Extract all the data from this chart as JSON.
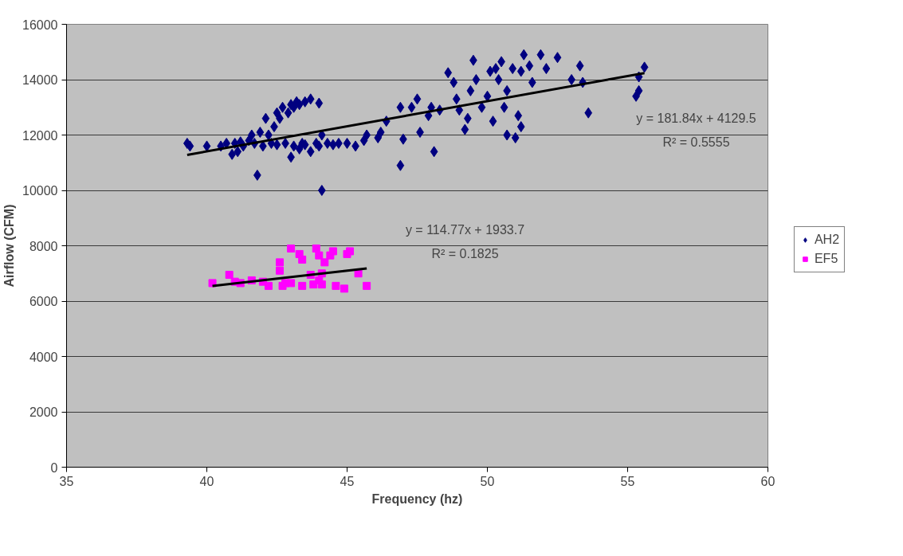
{
  "chart_data": {
    "type": "scatter",
    "xlabel": "Frequency (hz)",
    "ylabel": "Airflow (CFM)",
    "xlim": [
      35,
      60
    ],
    "xticks": [
      35,
      40,
      45,
      50,
      55,
      60
    ],
    "ylim": [
      0,
      16000
    ],
    "yticks": [
      0,
      2000,
      4000,
      6000,
      8000,
      10000,
      12000,
      14000,
      16000
    ],
    "grid": "y",
    "legend": "right",
    "series": [
      {
        "name": "AH2",
        "color": "#000080",
        "marker": "diamond",
        "x": [
          39.3,
          39.4,
          40.0,
          40.5,
          40.7,
          40.9,
          41.0,
          41.1,
          41.2,
          41.3,
          41.5,
          41.6,
          41.7,
          41.8,
          41.9,
          42.0,
          42.1,
          42.2,
          42.3,
          42.4,
          42.5,
          42.6,
          42.7,
          42.9,
          43.0,
          43.1,
          43.2,
          43.3,
          43.5,
          43.7,
          44.0,
          42.5,
          42.8,
          43.0,
          43.1,
          43.3,
          43.4,
          43.5,
          43.7,
          43.9,
          44.0,
          44.1,
          44.1,
          44.3,
          44.5,
          44.7,
          45.0,
          45.3,
          45.6,
          45.7,
          46.1,
          46.2,
          46.4,
          46.9,
          46.9,
          47.0,
          47.3,
          47.5,
          47.6,
          47.9,
          48.0,
          48.1,
          48.3,
          48.6,
          48.8,
          48.9,
          49.0,
          49.2,
          49.3,
          49.4,
          49.5,
          49.6,
          49.8,
          50.0,
          50.1,
          50.2,
          50.3,
          50.4,
          50.5,
          50.6,
          50.7,
          50.9,
          51.0,
          51.1,
          51.2,
          51.3,
          51.5,
          51.6,
          51.9,
          52.1,
          52.5,
          53.0,
          53.3,
          53.4,
          53.6,
          55.3,
          55.4,
          55.4,
          55.6,
          50.7,
          51.2
        ],
        "values": [
          11700,
          11600,
          11600,
          11600,
          11700,
          11300,
          11700,
          11400,
          11750,
          11600,
          11800,
          12000,
          11700,
          10550,
          12100,
          11600,
          12600,
          12000,
          11700,
          12300,
          12800,
          12600,
          13000,
          12800,
          13100,
          13000,
          13200,
          13100,
          13200,
          13300,
          13150,
          11650,
          11700,
          11200,
          11600,
          11500,
          11700,
          11650,
          11400,
          11700,
          11600,
          10000,
          12000,
          11700,
          11650,
          11700,
          11700,
          11600,
          11800,
          12000,
          11900,
          12100,
          12500,
          10900,
          13000,
          11850,
          13000,
          13300,
          12100,
          12700,
          13000,
          11400,
          12900,
          14250,
          13900,
          13300,
          12900,
          12200,
          12600,
          13600,
          14700,
          14000,
          13000,
          13400,
          14300,
          12500,
          14400,
          14000,
          14650,
          13000,
          13600,
          14400,
          11900,
          12700,
          14300,
          14900,
          14500,
          13900,
          14900,
          14400,
          14800,
          14000,
          14500,
          13900,
          12800,
          13400,
          13600,
          14100,
          14450,
          12000,
          12300
        ]
      },
      {
        "name": "EF5",
        "color": "#ff00ff",
        "marker": "square",
        "x": [
          40.2,
          40.8,
          41.0,
          41.2,
          41.6,
          42.2,
          42.6,
          42.6,
          42.7,
          43.0,
          43.3,
          43.4,
          43.7,
          43.8,
          43.9,
          44.0,
          44.1,
          44.2,
          44.4,
          44.5,
          44.0,
          44.6,
          44.9,
          45.0,
          45.1,
          45.4,
          45.7,
          42.0,
          43.0,
          43.4,
          44.1,
          42.8
        ],
        "values": [
          6650,
          6950,
          6700,
          6650,
          6750,
          6550,
          7100,
          7400,
          6550,
          7900,
          7700,
          7500,
          6950,
          6600,
          7900,
          7650,
          7000,
          7400,
          7650,
          7800,
          6750,
          6550,
          6450,
          7700,
          7800,
          7000,
          6550,
          6700,
          6650,
          6550,
          6600,
          6650
        ]
      },
      {
        "type": "line",
        "color": "#000000",
        "x": [
          39.3,
          55.6
        ],
        "values": [
          11280,
          14240
        ]
      },
      {
        "type": "line",
        "color": "#000000",
        "x": [
          40.2,
          45.7
        ],
        "values": [
          6550,
          7180
        ]
      }
    ],
    "annotations": [
      "y = 181.84x + 4129.5",
      "R² = 0.5555",
      "y = 114.77x + 1933.7",
      "R² = 0.1825"
    ]
  }
}
